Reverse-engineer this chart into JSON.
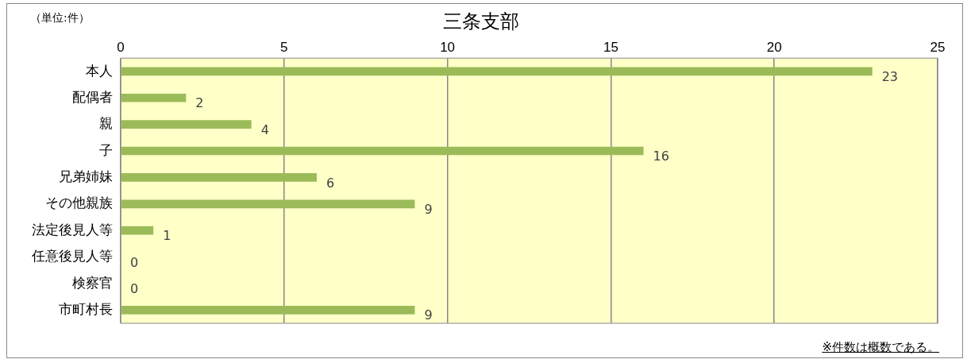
{
  "chart_data": {
    "type": "bar",
    "orientation": "horizontal",
    "title": "三条支部",
    "categories": [
      "本人",
      "配偶者",
      "親",
      "子",
      "兄弟姉妹",
      "その他親族",
      "法定後見人等",
      "任意後見人等",
      "検察官",
      "市町村長"
    ],
    "values": [
      23,
      2,
      4,
      16,
      6,
      9,
      1,
      0,
      0,
      9
    ],
    "color": "#9bbb59",
    "xlim": [
      0,
      25
    ],
    "xticks": [
      0,
      5,
      10,
      15,
      20,
      25
    ],
    "grid": "x",
    "legend": false,
    "data_labels": true,
    "annotations": [
      "（単位:件）",
      "※件数は概数である。"
    ]
  }
}
